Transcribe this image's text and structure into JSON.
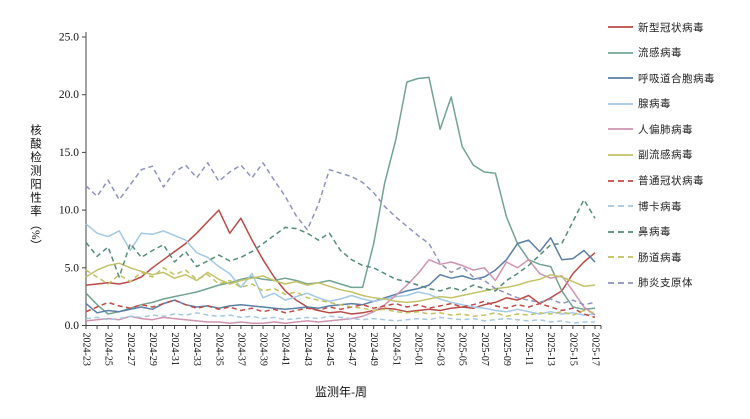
{
  "page": {
    "background": "#ffffff"
  },
  "axis": {
    "y_title_main": "核酸检测阳性率",
    "y_title_unit": "（%）",
    "x_title": "监测年-周"
  },
  "chart_data": {
    "type": "line",
    "title": "",
    "xlabel": "监测年-周",
    "ylabel": "核酸检测阳性率（%）",
    "ylim": [
      0,
      25
    ],
    "yticks": [
      0,
      5,
      10,
      15,
      20,
      25
    ],
    "ytick_labels": [
      "0.0",
      "5.0",
      "10.0",
      "15.0",
      "20.0",
      "25.0"
    ],
    "grid": false,
    "legend_position": "right",
    "x_label_every": 2,
    "categories": [
      "2024-23",
      "2024-24",
      "2024-25",
      "2024-26",
      "2024-27",
      "2024-28",
      "2024-29",
      "2024-30",
      "2024-31",
      "2024-32",
      "2024-33",
      "2024-34",
      "2024-35",
      "2024-36",
      "2024-37",
      "2024-38",
      "2024-39",
      "2024-40",
      "2024-41",
      "2024-42",
      "2024-43",
      "2024-44",
      "2024-45",
      "2024-46",
      "2024-47",
      "2024-48",
      "2024-49",
      "2024-50",
      "2024-51",
      "2024-52",
      "2025-01",
      "2025-02",
      "2025-03",
      "2025-04",
      "2025-05",
      "2025-06",
      "2025-07",
      "2025-08",
      "2025-09",
      "2025-10",
      "2025-11",
      "2025-12",
      "2025-13",
      "2025-14",
      "2025-15",
      "2025-16",
      "2025-17"
    ],
    "series": [
      {
        "name": "新型冠状病毒",
        "color": "#b94b46",
        "dashed": false,
        "values": [
          3.5,
          3.6,
          3.7,
          3.6,
          3.8,
          4.2,
          5.0,
          5.7,
          6.4,
          7.1,
          8.0,
          9.0,
          10.0,
          8.0,
          9.3,
          7.4,
          5.7,
          4.2,
          3.0,
          2.2,
          1.6,
          1.3,
          1.1,
          1.2,
          1.0,
          1.1,
          1.3,
          1.5,
          1.4,
          1.2,
          1.3,
          1.4,
          1.3,
          1.5,
          1.6,
          1.5,
          1.8,
          2.0,
          2.4,
          2.2,
          2.6,
          1.9,
          2.4,
          3.0,
          4.5,
          5.5,
          6.3
        ]
      },
      {
        "name": "流感病毒",
        "color": "#72a392",
        "dashed": false,
        "values": [
          2.8,
          1.8,
          1.0,
          1.2,
          1.5,
          1.8,
          2.0,
          2.3,
          2.5,
          2.7,
          2.9,
          3.2,
          3.5,
          3.7,
          4.0,
          4.2,
          4.0,
          3.9,
          4.1,
          3.9,
          3.6,
          3.7,
          3.9,
          3.6,
          3.3,
          3.3,
          7.1,
          12.4,
          16.1,
          21.1,
          21.4,
          21.5,
          17.0,
          19.8,
          15.5,
          13.9,
          13.3,
          13.2,
          9.4,
          7.1,
          5.7,
          5.3,
          5.1,
          3.0,
          1.6,
          1.4,
          1.5
        ]
      },
      {
        "name": "呼吸道合胞病毒",
        "color": "#5a7fa5",
        "dashed": false,
        "values": [
          1.9,
          1.1,
          1.3,
          1.2,
          1.4,
          1.6,
          1.4,
          1.9,
          2.2,
          1.8,
          1.6,
          1.7,
          1.5,
          1.7,
          1.8,
          1.7,
          1.6,
          1.5,
          1.4,
          1.5,
          1.6,
          1.5,
          1.7,
          1.8,
          1.9,
          1.8,
          2.1,
          2.4,
          2.7,
          3.0,
          3.2,
          3.5,
          4.4,
          4.1,
          4.3,
          4.0,
          4.2,
          4.8,
          5.7,
          7.1,
          7.4,
          6.4,
          7.6,
          5.7,
          5.8,
          6.5,
          5.5
        ]
      },
      {
        "name": "腺病毒",
        "color": "#a2c9e6",
        "dashed": false,
        "values": [
          8.8,
          8.0,
          7.7,
          8.2,
          6.5,
          8.0,
          7.9,
          8.2,
          7.8,
          7.4,
          6.3,
          5.9,
          5.1,
          4.5,
          3.3,
          4.5,
          2.4,
          2.8,
          2.2,
          2.5,
          2.8,
          2.4,
          2.1,
          2.3,
          2.6,
          2.3,
          2.1,
          2.3,
          2.5,
          2.6,
          2.9,
          2.7,
          2.3,
          2.0,
          1.8,
          1.6,
          1.5,
          1.3,
          1.2,
          1.4,
          1.2,
          1.0,
          1.2,
          1.0,
          1.1,
          0.9,
          1.0
        ]
      },
      {
        "name": "人偏肺病毒",
        "color": "#cf93b0",
        "dashed": false,
        "values": [
          0.4,
          0.5,
          0.6,
          0.5,
          0.8,
          0.6,
          0.5,
          0.7,
          0.6,
          0.5,
          0.4,
          0.3,
          0.3,
          0.2,
          0.3,
          0.2,
          0.2,
          0.3,
          0.2,
          0.3,
          0.4,
          0.3,
          0.4,
          0.5,
          0.6,
          0.8,
          1.2,
          1.8,
          2.6,
          3.5,
          4.5,
          5.7,
          5.3,
          5.5,
          5.2,
          4.8,
          5.0,
          3.9,
          5.5,
          5.0,
          5.7,
          4.5,
          4.1,
          4.3,
          3.0,
          1.6,
          0.9
        ]
      },
      {
        "name": "副流感病毒",
        "color": "#c3c269",
        "dashed": false,
        "values": [
          4.2,
          4.8,
          5.2,
          5.4,
          5.0,
          4.7,
          4.4,
          4.6,
          4.1,
          4.4,
          3.9,
          4.6,
          4.0,
          3.6,
          3.9,
          4.1,
          4.3,
          3.9,
          3.6,
          3.8,
          3.5,
          3.7,
          3.4,
          3.1,
          2.9,
          2.6,
          2.4,
          2.3,
          2.1,
          2.0,
          2.1,
          2.3,
          2.5,
          2.4,
          2.6,
          2.8,
          3.0,
          3.2,
          3.3,
          3.5,
          3.8,
          4.0,
          4.4,
          4.2,
          3.8,
          3.4,
          3.5
        ]
      },
      {
        "name": "普通冠状病毒",
        "color": "#bf4b47",
        "dashed": true,
        "values": [
          1.2,
          1.6,
          2.0,
          1.7,
          1.5,
          1.8,
          1.6,
          1.9,
          2.2,
          1.8,
          1.5,
          1.7,
          1.4,
          1.6,
          1.3,
          1.5,
          1.2,
          1.4,
          1.1,
          1.3,
          1.5,
          1.3,
          1.6,
          1.4,
          1.6,
          1.8,
          1.5,
          1.7,
          1.9,
          1.6,
          1.8,
          1.5,
          1.7,
          1.9,
          1.6,
          1.8,
          2.1,
          1.7,
          1.5,
          1.8,
          1.6,
          1.9,
          1.6,
          1.3,
          1.5,
          1.0,
          0.7
        ]
      },
      {
        "name": "博卡病毒",
        "color": "#a5c8e2",
        "dashed": true,
        "values": [
          0.6,
          0.7,
          0.5,
          0.6,
          0.8,
          0.7,
          0.9,
          0.8,
          1.0,
          0.9,
          1.1,
          0.9,
          0.8,
          0.9,
          0.7,
          0.8,
          0.6,
          0.7,
          0.5,
          0.6,
          0.7,
          0.6,
          0.8,
          0.7,
          0.6,
          0.5,
          0.6,
          0.5,
          0.4,
          0.5,
          0.6,
          0.5,
          0.7,
          0.6,
          0.5,
          0.6,
          0.4,
          0.5,
          0.6,
          0.5,
          0.4,
          0.5,
          0.3,
          0.4,
          0.2,
          0.3,
          0.3
        ]
      },
      {
        "name": "鼻病毒",
        "color": "#558b7a",
        "dashed": true,
        "values": [
          7.2,
          6.0,
          6.8,
          4.2,
          7.1,
          5.9,
          6.5,
          7.0,
          5.5,
          6.4,
          5.1,
          5.6,
          6.1,
          5.6,
          5.9,
          6.4,
          7.1,
          7.8,
          8.5,
          8.4,
          8.0,
          7.4,
          8.0,
          6.5,
          5.7,
          5.2,
          5.0,
          4.5,
          4.0,
          3.8,
          3.5,
          3.2,
          3.0,
          3.3,
          3.0,
          3.5,
          3.2,
          3.0,
          3.9,
          4.5,
          5.2,
          6.1,
          7.0,
          7.1,
          9.0,
          10.9,
          9.3
        ]
      },
      {
        "name": "肠道病毒",
        "color": "#c2c160",
        "dashed": true,
        "values": [
          4.8,
          4.2,
          3.6,
          4.4,
          3.8,
          4.6,
          4.2,
          5.0,
          4.4,
          4.8,
          4.0,
          4.4,
          3.6,
          3.9,
          3.3,
          3.6,
          3.0,
          3.2,
          2.7,
          2.9,
          2.4,
          2.2,
          2.0,
          1.8,
          1.6,
          1.5,
          1.3,
          1.4,
          1.2,
          1.1,
          1.2,
          1.0,
          1.1,
          0.9,
          1.0,
          0.8,
          0.9,
          1.1,
          0.8,
          1.0,
          0.9,
          1.1,
          1.0,
          1.2,
          0.9,
          1.3,
          1.1
        ]
      },
      {
        "name": "肺炎支原体",
        "color": "#8f93bd",
        "dashed": true,
        "values": [
          12.1,
          11.2,
          12.6,
          10.9,
          12.2,
          13.5,
          13.8,
          12.0,
          13.3,
          13.9,
          12.8,
          14.1,
          12.5,
          13.3,
          13.9,
          12.8,
          14.1,
          12.6,
          11.2,
          9.5,
          8.3,
          10.5,
          13.5,
          13.2,
          12.9,
          12.4,
          11.5,
          10.3,
          9.4,
          8.6,
          7.8,
          7.1,
          5.4,
          4.6,
          5.1,
          4.2,
          3.9,
          3.2,
          2.8,
          2.4,
          2.2,
          2.0,
          2.3,
          1.9,
          2.2,
          1.8,
          2.0
        ]
      }
    ]
  }
}
